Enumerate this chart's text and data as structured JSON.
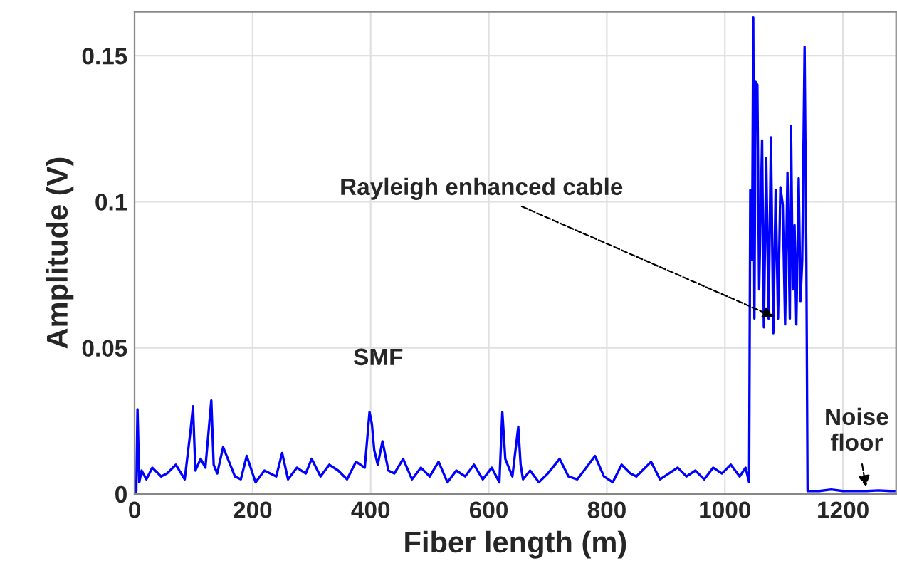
{
  "chart_data": {
    "type": "line",
    "xlabel": "Fiber length (m)",
    "ylabel": "Amplitude (V)",
    "xlim": [
      0,
      1290
    ],
    "xticks": [
      0,
      200,
      400,
      600,
      800,
      1000,
      1200
    ],
    "ylim": [
      0,
      0.165
    ],
    "yticks": [
      0,
      0.05,
      0.1,
      0.15
    ],
    "grid": true,
    "marker": "none",
    "line_style": "solid",
    "series": [
      {
        "color": "#0000ff",
        "x": [
          0,
          3,
          5,
          8,
          12,
          20,
          30,
          45,
          55,
          70,
          85,
          95,
          99,
          103,
          112,
          120,
          130,
          134,
          140,
          150,
          160,
          170,
          180,
          190,
          205,
          220,
          240,
          250,
          260,
          275,
          290,
          300,
          315,
          330,
          345,
          360,
          375,
          390,
          398,
          402,
          406,
          412,
          420,
          430,
          440,
          455,
          470,
          485,
          500,
          515,
          530,
          545,
          560,
          575,
          590,
          605,
          618,
          623,
          628,
          640,
          650,
          654,
          658,
          670,
          685,
          700,
          720,
          735,
          750,
          765,
          780,
          795,
          810,
          825,
          840,
          850,
          860,
          875,
          890,
          905,
          920,
          935,
          950,
          965,
          980,
          995,
          1010,
          1025,
          1035,
          1041,
          1043,
          1046,
          1048,
          1050,
          1052,
          1055,
          1058,
          1063,
          1066,
          1070,
          1074,
          1078,
          1082,
          1086,
          1090,
          1094,
          1098,
          1102,
          1106,
          1110,
          1112,
          1115,
          1118,
          1121,
          1125,
          1128,
          1131,
          1135,
          1138,
          1140,
          1142,
          1160,
          1180,
          1200,
          1220,
          1240,
          1260,
          1280,
          1290
        ],
        "values": [
          0,
          0.001,
          0.029,
          0.004,
          0.008,
          0.005,
          0.009,
          0.006,
          0.007,
          0.01,
          0.005,
          0.022,
          0.03,
          0.008,
          0.012,
          0.009,
          0.032,
          0.01,
          0.007,
          0.016,
          0.011,
          0.006,
          0.005,
          0.013,
          0.004,
          0.008,
          0.006,
          0.014,
          0.005,
          0.009,
          0.007,
          0.012,
          0.006,
          0.01,
          0.008,
          0.005,
          0.011,
          0.009,
          0.028,
          0.024,
          0.015,
          0.01,
          0.018,
          0.008,
          0.007,
          0.012,
          0.005,
          0.009,
          0.006,
          0.011,
          0.004,
          0.008,
          0.006,
          0.01,
          0.005,
          0.009,
          0.004,
          0.028,
          0.012,
          0.006,
          0.023,
          0.01,
          0.005,
          0.008,
          0.004,
          0.007,
          0.012,
          0.006,
          0.005,
          0.009,
          0.013,
          0.006,
          0.004,
          0.01,
          0.007,
          0.006,
          0.008,
          0.011,
          0.005,
          0.007,
          0.009,
          0.006,
          0.008,
          0.005,
          0.009,
          0.007,
          0.01,
          0.006,
          0.009,
          0.004,
          0.104,
          0.08,
          0.163,
          0.06,
          0.141,
          0.14,
          0.07,
          0.121,
          0.057,
          0.115,
          0.06,
          0.122,
          0.055,
          0.104,
          0.06,
          0.105,
          0.099,
          0.058,
          0.11,
          0.06,
          0.126,
          0.07,
          0.092,
          0.058,
          0.108,
          0.066,
          0.08,
          0.153,
          0.08,
          0.001,
          0.001,
          0.001,
          0.0015,
          0.001,
          0.001,
          0.001,
          0.0012,
          0.001,
          0.001
        ]
      }
    ],
    "annotations": [
      "SMF",
      {
        "text": "Rayleigh enhanced cable",
        "x": 1090,
        "y": 0.06
      },
      {
        "text": "Noise floor",
        "x": 1240,
        "y": 0.001
      }
    ]
  }
}
